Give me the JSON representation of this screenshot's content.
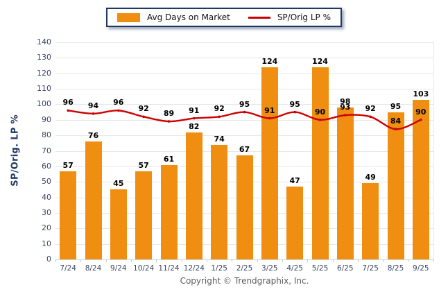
{
  "legend": {
    "bar_label": "Avg Days on Market",
    "line_label": "SP/Orig LP %"
  },
  "y_axis_title": "SP/Orig. LP %",
  "copyright": "Copyright © Trendgraphix, Inc.",
  "colors": {
    "bar": "#EF8E10",
    "line": "#CC0000",
    "axis_label": "#3A4663",
    "data_label": "#000000",
    "grid": "#E7E7E7",
    "axis_line": "#D5D5D5",
    "legend_border": "#1F3864",
    "y_title": "#1F3864",
    "copyright": "#5B5B5B"
  },
  "chart_data": {
    "type": "combo",
    "categories": [
      "7/24",
      "8/24",
      "9/24",
      "10/24",
      "11/24",
      "12/24",
      "1/25",
      "2/25",
      "3/25",
      "4/25",
      "5/25",
      "6/25",
      "7/25",
      "8/25",
      "9/25"
    ],
    "series": [
      {
        "name": "Avg Days on Market",
        "type": "bar",
        "color": "#EF8E10",
        "values": [
          57,
          76,
          45,
          57,
          61,
          82,
          74,
          67,
          124,
          47,
          124,
          98,
          49,
          95,
          103
        ]
      },
      {
        "name": "SP/Orig LP %",
        "type": "line",
        "color": "#CC0000",
        "values": [
          96,
          94,
          96,
          92,
          89,
          91,
          92,
          95,
          91,
          95,
          90,
          93,
          92,
          84,
          90
        ]
      }
    ],
    "title": "",
    "xlabel": "",
    "ylabel": "SP/Orig. LP %",
    "ylim": [
      0,
      140
    ],
    "ytick_step": 10,
    "grid": "horizontal",
    "legend_position": "top-center",
    "data_labels": true
  }
}
